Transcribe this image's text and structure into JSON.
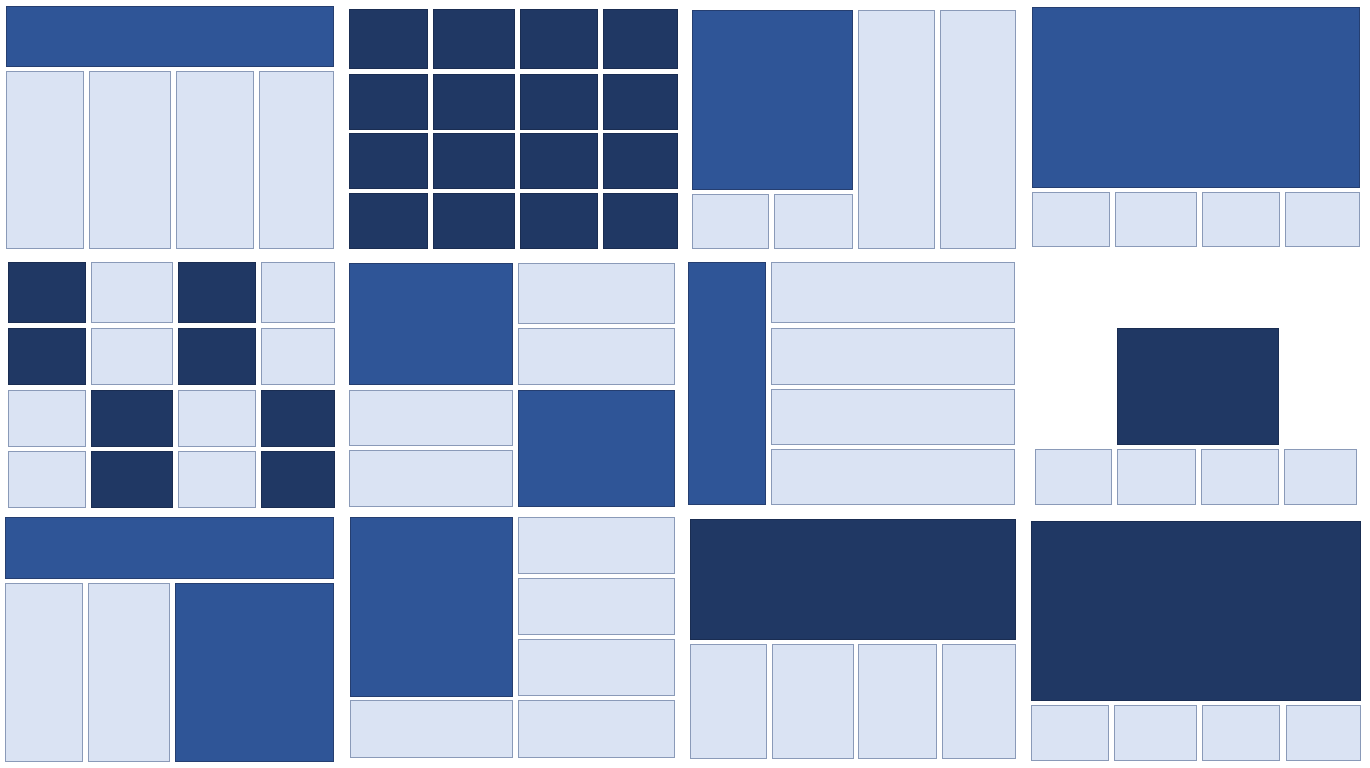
{
  "colors": {
    "background": "#ffffff",
    "light": "#dae3f3",
    "mid": "#2f5597",
    "dark": "#203864",
    "tile_border": "#8a9ab8"
  },
  "panels": [
    {
      "name": "layout-header-four-columns",
      "tiles": [
        {
          "name": "header-block",
          "tone": "mid"
        },
        {
          "name": "column-1",
          "tone": "light"
        },
        {
          "name": "column-2",
          "tone": "light"
        },
        {
          "name": "column-3",
          "tone": "light"
        },
        {
          "name": "column-4",
          "tone": "light"
        }
      ]
    },
    {
      "name": "layout-dark-grid-4x4",
      "tiles": [
        {
          "name": "cell-r1-c1",
          "tone": "dark"
        },
        {
          "name": "cell-r1-c2",
          "tone": "dark"
        },
        {
          "name": "cell-r1-c3",
          "tone": "dark"
        },
        {
          "name": "cell-r1-c4",
          "tone": "dark"
        },
        {
          "name": "cell-r2-c1",
          "tone": "dark"
        },
        {
          "name": "cell-r2-c2",
          "tone": "dark"
        },
        {
          "name": "cell-r2-c3",
          "tone": "dark"
        },
        {
          "name": "cell-r2-c4",
          "tone": "dark"
        },
        {
          "name": "cell-r3-c1",
          "tone": "dark"
        },
        {
          "name": "cell-r3-c2",
          "tone": "dark"
        },
        {
          "name": "cell-r3-c3",
          "tone": "dark"
        },
        {
          "name": "cell-r3-c4",
          "tone": "dark"
        },
        {
          "name": "cell-r4-c1",
          "tone": "dark"
        },
        {
          "name": "cell-r4-c2",
          "tone": "dark"
        },
        {
          "name": "cell-r4-c3",
          "tone": "dark"
        },
        {
          "name": "cell-r4-c4",
          "tone": "dark"
        }
      ]
    },
    {
      "name": "layout-feature-with-side-columns",
      "tiles": [
        {
          "name": "feature-block",
          "tone": "mid"
        },
        {
          "name": "side-column-1",
          "tone": "light"
        },
        {
          "name": "side-column-2",
          "tone": "light"
        },
        {
          "name": "bottom-cell-1",
          "tone": "light"
        },
        {
          "name": "bottom-cell-2",
          "tone": "light"
        }
      ]
    },
    {
      "name": "layout-banner-four-cells",
      "tiles": [
        {
          "name": "banner-block",
          "tone": "mid"
        },
        {
          "name": "cell-1",
          "tone": "light"
        },
        {
          "name": "cell-2",
          "tone": "light"
        },
        {
          "name": "cell-3",
          "tone": "light"
        },
        {
          "name": "cell-4",
          "tone": "light"
        }
      ]
    },
    {
      "name": "layout-checker-grid",
      "tiles": [
        {
          "name": "cell-r1-c1",
          "tone": "dark"
        },
        {
          "name": "cell-r1-c2",
          "tone": "light"
        },
        {
          "name": "cell-r1-c3",
          "tone": "dark"
        },
        {
          "name": "cell-r1-c4",
          "tone": "light"
        },
        {
          "name": "cell-r2-c1",
          "tone": "dark"
        },
        {
          "name": "cell-r2-c2",
          "tone": "light"
        },
        {
          "name": "cell-r2-c3",
          "tone": "dark"
        },
        {
          "name": "cell-r2-c4",
          "tone": "light"
        },
        {
          "name": "cell-r3-c1",
          "tone": "light"
        },
        {
          "name": "cell-r3-c2",
          "tone": "dark"
        },
        {
          "name": "cell-r3-c3",
          "tone": "light"
        },
        {
          "name": "cell-r3-c4",
          "tone": "dark"
        },
        {
          "name": "cell-r4-c1",
          "tone": "light"
        },
        {
          "name": "cell-r4-c2",
          "tone": "dark"
        },
        {
          "name": "cell-r4-c3",
          "tone": "light"
        },
        {
          "name": "cell-r4-c4",
          "tone": "dark"
        }
      ]
    },
    {
      "name": "layout-two-feature-quadrants",
      "tiles": [
        {
          "name": "feature-top-left",
          "tone": "mid"
        },
        {
          "name": "row-top-right-1",
          "tone": "light"
        },
        {
          "name": "row-top-right-2",
          "tone": "light"
        },
        {
          "name": "row-bottom-left-1",
          "tone": "light"
        },
        {
          "name": "row-bottom-left-2",
          "tone": "light"
        },
        {
          "name": "feature-bottom-right",
          "tone": "mid"
        }
      ]
    },
    {
      "name": "layout-sidebar-four-rows",
      "tiles": [
        {
          "name": "sidebar-block",
          "tone": "mid"
        },
        {
          "name": "row-1",
          "tone": "light"
        },
        {
          "name": "row-2",
          "tone": "light"
        },
        {
          "name": "row-3",
          "tone": "light"
        },
        {
          "name": "row-4",
          "tone": "light"
        }
      ]
    },
    {
      "name": "layout-centered-block-four-cells",
      "tiles": [
        {
          "name": "center-block",
          "tone": "dark"
        },
        {
          "name": "cell-1",
          "tone": "light"
        },
        {
          "name": "cell-2",
          "tone": "light"
        },
        {
          "name": "cell-3",
          "tone": "light"
        },
        {
          "name": "cell-4",
          "tone": "light"
        }
      ]
    },
    {
      "name": "layout-header-two-columns-feature",
      "tiles": [
        {
          "name": "header-block",
          "tone": "mid"
        },
        {
          "name": "column-1",
          "tone": "light"
        },
        {
          "name": "column-2",
          "tone": "light"
        },
        {
          "name": "feature-column",
          "tone": "mid"
        }
      ]
    },
    {
      "name": "layout-feature-with-rows",
      "tiles": [
        {
          "name": "feature-block",
          "tone": "mid"
        },
        {
          "name": "row-1",
          "tone": "light"
        },
        {
          "name": "row-2",
          "tone": "light"
        },
        {
          "name": "row-3",
          "tone": "light"
        },
        {
          "name": "row-4",
          "tone": "light"
        },
        {
          "name": "bottom-left-cell",
          "tone": "light"
        }
      ]
    },
    {
      "name": "layout-dark-banner-four-columns",
      "tiles": [
        {
          "name": "banner-block",
          "tone": "dark"
        },
        {
          "name": "column-1",
          "tone": "light"
        },
        {
          "name": "column-2",
          "tone": "light"
        },
        {
          "name": "column-3",
          "tone": "light"
        },
        {
          "name": "column-4",
          "tone": "light"
        }
      ]
    },
    {
      "name": "layout-dark-hero-four-cells",
      "tiles": [
        {
          "name": "hero-block",
          "tone": "dark"
        },
        {
          "name": "cell-1",
          "tone": "light"
        },
        {
          "name": "cell-2",
          "tone": "light"
        },
        {
          "name": "cell-3",
          "tone": "light"
        },
        {
          "name": "cell-4",
          "tone": "light"
        }
      ]
    }
  ]
}
